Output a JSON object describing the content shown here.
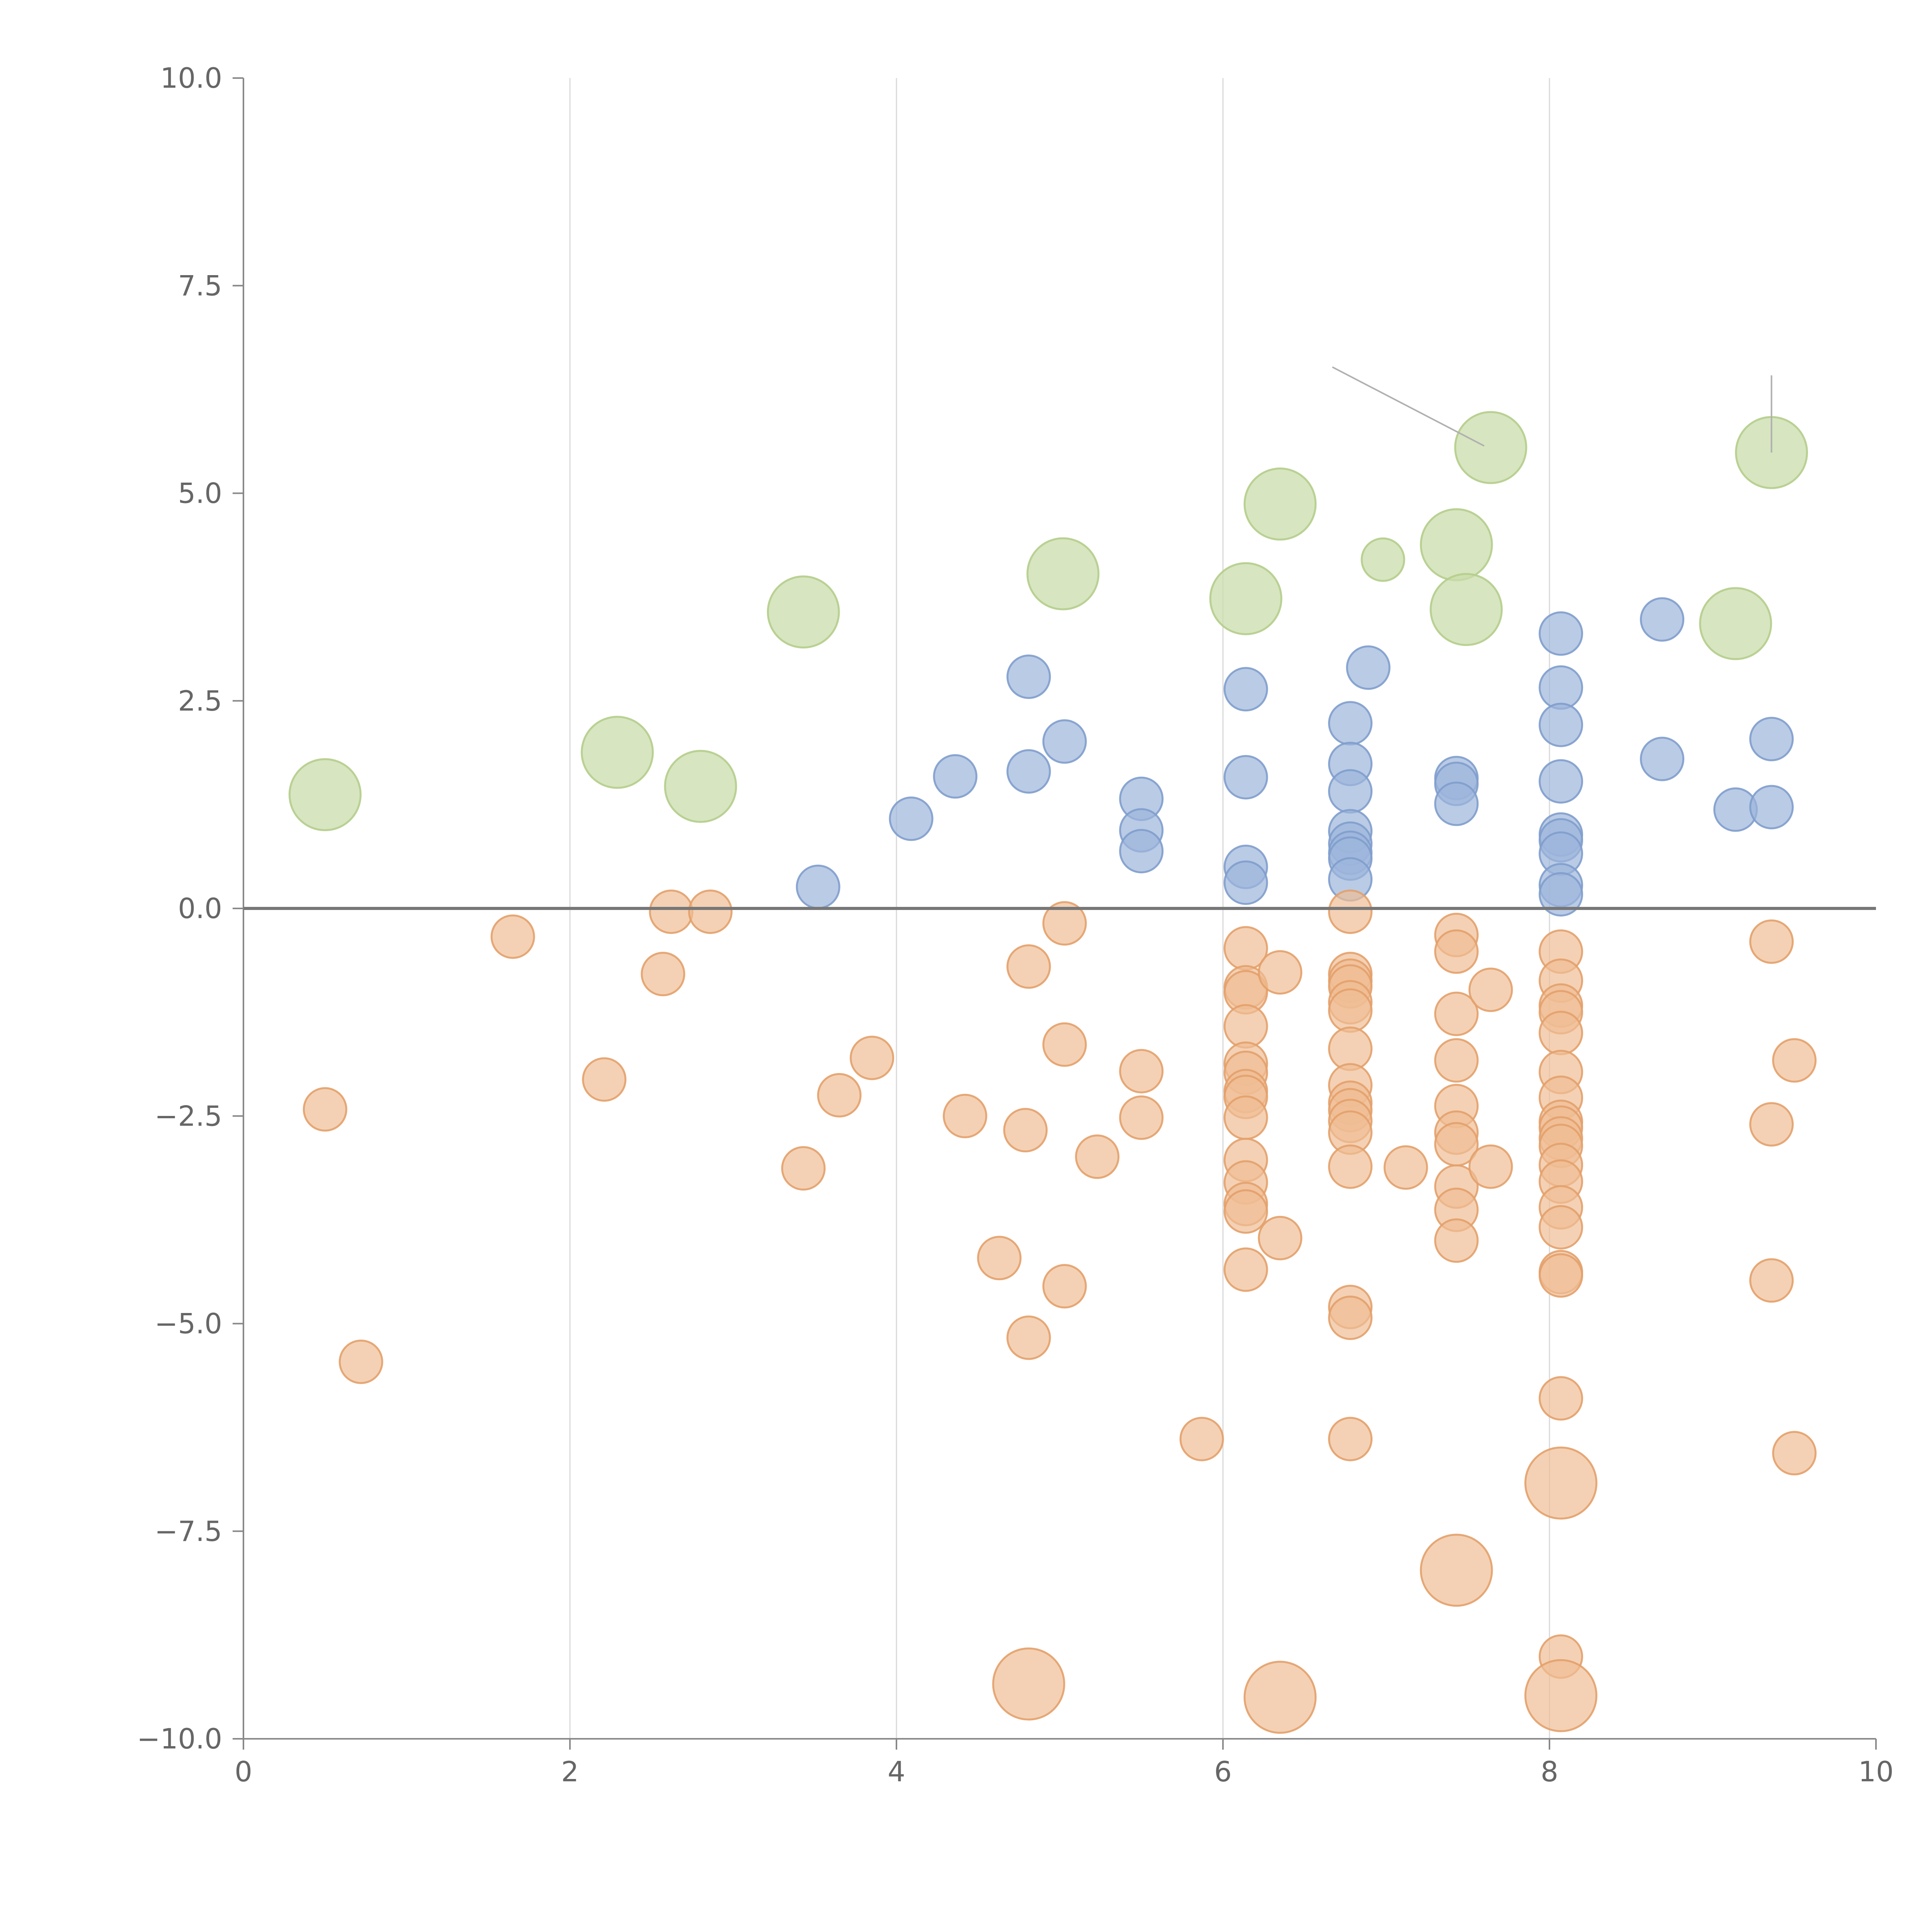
{
  "chart_data": {
    "type": "scatter",
    "title": "",
    "xlabel": "",
    "ylabel": "",
    "xlim": [
      0,
      10
    ],
    "ylim": [
      -10,
      10
    ],
    "x_ticks": [
      0,
      2,
      4,
      6,
      8,
      10
    ],
    "y_ticks": [
      10,
      7.5,
      5,
      2.5,
      0,
      -2.5,
      -5,
      -7.5,
      -10
    ],
    "x_tick_labels": [
      "0",
      "2",
      "4",
      "6",
      "8",
      "10"
    ],
    "y_tick_labels": [
      "10.0",
      "7.5",
      "5.0",
      "2.5",
      "0.0",
      "−2.5",
      "−5.0",
      "−7.5",
      "−10.0"
    ],
    "grid": {
      "vertical": true,
      "horizontal": false
    },
    "reference_line_y": 0,
    "legend": "none",
    "series": [
      {
        "color": "#cadcab",
        "stroke": "#b4cd8b",
        "opacity": 0.75,
        "size": "large",
        "points": [
          {
            "x": 0.5,
            "y": 1.37
          },
          {
            "x": 2.29,
            "y": 1.88
          },
          {
            "x": 2.8,
            "y": 1.47
          },
          {
            "x": 3.43,
            "y": 3.57
          },
          {
            "x": 5.02,
            "y": 4.03
          },
          {
            "x": 6.14,
            "y": 3.73
          },
          {
            "x": 6.35,
            "y": 4.87
          },
          {
            "x": 6.98,
            "y": 4.2,
            "size": "small"
          },
          {
            "x": 7.43,
            "y": 4.38
          },
          {
            "x": 7.49,
            "y": 3.6
          },
          {
            "x": 7.64,
            "y": 5.55
          },
          {
            "x": 9.14,
            "y": 3.43
          },
          {
            "x": 9.36,
            "y": 5.49
          }
        ]
      },
      {
        "color": "#9db5db",
        "stroke": "#7f9dcc",
        "opacity": 0.7,
        "size": "small",
        "points": [
          {
            "x": 3.52,
            "y": 0.26
          },
          {
            "x": 4.09,
            "y": 1.08
          },
          {
            "x": 4.36,
            "y": 1.59
          },
          {
            "x": 4.81,
            "y": 1.65
          },
          {
            "x": 4.81,
            "y": 2.79
          },
          {
            "x": 5.03,
            "y": 2.01
          },
          {
            "x": 5.5,
            "y": 1.32
          },
          {
            "x": 5.5,
            "y": 0.94
          },
          {
            "x": 5.5,
            "y": 0.69
          },
          {
            "x": 6.14,
            "y": 2.64
          },
          {
            "x": 6.14,
            "y": 1.58
          },
          {
            "x": 6.14,
            "y": 0.5
          },
          {
            "x": 6.14,
            "y": 0.31
          },
          {
            "x": 6.78,
            "y": 2.23
          },
          {
            "x": 6.78,
            "y": 1.74
          },
          {
            "x": 6.78,
            "y": 1.41
          },
          {
            "x": 6.78,
            "y": 0.93
          },
          {
            "x": 6.78,
            "y": 0.78
          },
          {
            "x": 6.78,
            "y": 0.67
          },
          {
            "x": 6.78,
            "y": 0.6
          },
          {
            "x": 6.78,
            "y": 0.35
          },
          {
            "x": 6.89,
            "y": 2.9
          },
          {
            "x": 7.43,
            "y": 1.57
          },
          {
            "x": 7.43,
            "y": 1.5
          },
          {
            "x": 7.43,
            "y": 1.26
          },
          {
            "x": 8.07,
            "y": 3.31
          },
          {
            "x": 8.07,
            "y": 2.66
          },
          {
            "x": 8.07,
            "y": 2.21
          },
          {
            "x": 8.07,
            "y": 1.53
          },
          {
            "x": 8.07,
            "y": 0.89
          },
          {
            "x": 8.07,
            "y": 0.82
          },
          {
            "x": 8.07,
            "y": 0.66
          },
          {
            "x": 8.07,
            "y": 0.28
          },
          {
            "x": 8.07,
            "y": 0.17
          },
          {
            "x": 8.69,
            "y": 3.48
          },
          {
            "x": 8.69,
            "y": 1.8
          },
          {
            "x": 9.14,
            "y": 1.19
          },
          {
            "x": 9.36,
            "y": 2.04
          },
          {
            "x": 9.36,
            "y": 1.22
          }
        ]
      },
      {
        "color": "#f0bd94",
        "stroke": "#e3a06a",
        "opacity": 0.7,
        "size": "small",
        "points": [
          {
            "x": 0.5,
            "y": -2.42
          },
          {
            "x": 0.72,
            "y": -5.46
          },
          {
            "x": 1.65,
            "y": -0.34
          },
          {
            "x": 2.21,
            "y": -2.06
          },
          {
            "x": 2.57,
            "y": -0.79
          },
          {
            "x": 2.62,
            "y": -0.04
          },
          {
            "x": 2.86,
            "y": -0.04
          },
          {
            "x": 3.43,
            "y": -3.13
          },
          {
            "x": 3.65,
            "y": -2.25
          },
          {
            "x": 3.85,
            "y": -1.8
          },
          {
            "x": 4.42,
            "y": -2.5
          },
          {
            "x": 4.63,
            "y": -4.21
          },
          {
            "x": 4.79,
            "y": -2.67
          },
          {
            "x": 4.81,
            "y": -0.7
          },
          {
            "x": 4.81,
            "y": -5.17
          },
          {
            "x": 5.03,
            "y": -0.18
          },
          {
            "x": 5.03,
            "y": -1.64
          },
          {
            "x": 5.03,
            "y": -4.55
          },
          {
            "x": 5.23,
            "y": -2.99
          },
          {
            "x": 5.5,
            "y": -1.96
          },
          {
            "x": 5.5,
            "y": -2.52
          },
          {
            "x": 5.87,
            "y": -6.39
          },
          {
            "x": 6.14,
            "y": -0.48
          },
          {
            "x": 6.14,
            "y": -0.95
          },
          {
            "x": 6.14,
            "y": -1.01
          },
          {
            "x": 6.14,
            "y": -1.42
          },
          {
            "x": 6.14,
            "y": -1.87
          },
          {
            "x": 6.14,
            "y": -1.98
          },
          {
            "x": 6.14,
            "y": -2.2
          },
          {
            "x": 6.14,
            "y": -2.27
          },
          {
            "x": 6.14,
            "y": -2.52
          },
          {
            "x": 6.14,
            "y": -3.03
          },
          {
            "x": 6.14,
            "y": -3.3
          },
          {
            "x": 6.14,
            "y": -3.56
          },
          {
            "x": 6.14,
            "y": -3.65
          },
          {
            "x": 6.14,
            "y": -4.35
          },
          {
            "x": 6.35,
            "y": -0.77
          },
          {
            "x": 6.35,
            "y": -3.97
          },
          {
            "x": 6.78,
            "y": -0.04
          },
          {
            "x": 6.78,
            "y": -0.79
          },
          {
            "x": 6.78,
            "y": -0.87
          },
          {
            "x": 6.78,
            "y": -0.94
          },
          {
            "x": 6.78,
            "y": -1.13
          },
          {
            "x": 6.78,
            "y": -1.23
          },
          {
            "x": 6.78,
            "y": -1.69
          },
          {
            "x": 6.78,
            "y": -2.13
          },
          {
            "x": 6.78,
            "y": -2.34
          },
          {
            "x": 6.78,
            "y": -2.43
          },
          {
            "x": 6.78,
            "y": -2.56
          },
          {
            "x": 6.78,
            "y": -2.7
          },
          {
            "x": 6.78,
            "y": -3.11
          },
          {
            "x": 6.78,
            "y": -4.8
          },
          {
            "x": 6.78,
            "y": -4.93
          },
          {
            "x": 6.78,
            "y": -6.39
          },
          {
            "x": 7.12,
            "y": -3.12
          },
          {
            "x": 7.43,
            "y": -0.32
          },
          {
            "x": 7.43,
            "y": -0.52
          },
          {
            "x": 7.43,
            "y": -1.27
          },
          {
            "x": 7.43,
            "y": -1.83
          },
          {
            "x": 7.43,
            "y": -2.38
          },
          {
            "x": 7.43,
            "y": -2.7
          },
          {
            "x": 7.43,
            "y": -2.84
          },
          {
            "x": 7.43,
            "y": -3.35
          },
          {
            "x": 7.43,
            "y": -3.63
          },
          {
            "x": 7.43,
            "y": -4.0
          },
          {
            "x": 7.64,
            "y": -0.98
          },
          {
            "x": 7.64,
            "y": -3.11
          },
          {
            "x": 8.07,
            "y": -0.52
          },
          {
            "x": 8.07,
            "y": -0.87
          },
          {
            "x": 8.07,
            "y": -1.17
          },
          {
            "x": 8.07,
            "y": -1.25
          },
          {
            "x": 8.07,
            "y": -1.5
          },
          {
            "x": 8.07,
            "y": -1.97
          },
          {
            "x": 8.07,
            "y": -2.28
          },
          {
            "x": 8.07,
            "y": -2.57
          },
          {
            "x": 8.07,
            "y": -2.64
          },
          {
            "x": 8.07,
            "y": -2.77
          },
          {
            "x": 8.07,
            "y": -2.86
          },
          {
            "x": 8.07,
            "y": -3.09
          },
          {
            "x": 8.07,
            "y": -3.29
          },
          {
            "x": 8.07,
            "y": -3.6
          },
          {
            "x": 8.07,
            "y": -3.84
          },
          {
            "x": 8.07,
            "y": -4.38
          },
          {
            "x": 8.07,
            "y": -4.42
          },
          {
            "x": 8.07,
            "y": -5.9
          },
          {
            "x": 8.07,
            "y": -9.01
          },
          {
            "x": 9.36,
            "y": -0.4
          },
          {
            "x": 9.36,
            "y": -2.6
          },
          {
            "x": 9.36,
            "y": -4.48
          },
          {
            "x": 9.5,
            "y": -1.83
          },
          {
            "x": 9.5,
            "y": -6.56
          },
          {
            "x": 4.81,
            "y": -9.34,
            "size": "large"
          },
          {
            "x": 6.35,
            "y": -9.5,
            "size": "large"
          },
          {
            "x": 7.43,
            "y": -7.97,
            "size": "large"
          },
          {
            "x": 8.07,
            "y": -6.92,
            "size": "large"
          },
          {
            "x": 8.07,
            "y": -9.48,
            "size": "large"
          }
        ]
      }
    ],
    "leader_lines": [
      {
        "from": [
          6.67,
          6.52
        ],
        "to": [
          7.6,
          5.57
        ],
        "color": "#b0b0b0"
      },
      {
        "from": [
          9.36,
          6.42
        ],
        "to": [
          9.36,
          5.49
        ],
        "color": "#b0b0b0"
      }
    ]
  }
}
